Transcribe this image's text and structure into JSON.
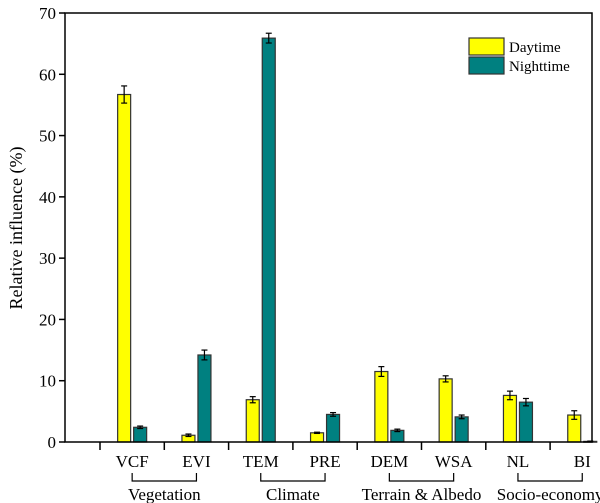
{
  "chart_data": {
    "type": "bar",
    "title": "",
    "xlabel": "",
    "ylabel": "Relative influence (%)",
    "ylim": [
      0,
      70
    ],
    "yticks": [
      0,
      10,
      20,
      30,
      40,
      50,
      60,
      70
    ],
    "grid": false,
    "legend_position": "top-right",
    "categories": [
      "VCF",
      "EVI",
      "TEM",
      "PRE",
      "DEM",
      "WSA",
      "NL",
      "BI"
    ],
    "groups": [
      {
        "label": "Vegetation",
        "categories": [
          "VCF",
          "EVI"
        ]
      },
      {
        "label": "Climate",
        "categories": [
          "TEM",
          "PRE"
        ]
      },
      {
        "label": "Terrain & Albedo",
        "categories": [
          "DEM",
          "WSA"
        ]
      },
      {
        "label": "Socio-economy",
        "categories": [
          "NL",
          "BI"
        ]
      }
    ],
    "series": [
      {
        "name": "Daytime",
        "color": "#FFFF00",
        "values": [
          56.7,
          1.1,
          6.9,
          1.5,
          11.5,
          10.3,
          7.6,
          4.4
        ],
        "errors": [
          1.4,
          0.2,
          0.5,
          0.1,
          0.8,
          0.5,
          0.7,
          0.7
        ]
      },
      {
        "name": "Nighttime",
        "color": "#008080",
        "values": [
          2.4,
          14.2,
          65.9,
          4.5,
          1.9,
          4.1,
          6.5,
          0.1
        ],
        "errors": [
          0.2,
          0.8,
          0.8,
          0.3,
          0.2,
          0.3,
          0.6,
          0.05
        ]
      }
    ]
  }
}
